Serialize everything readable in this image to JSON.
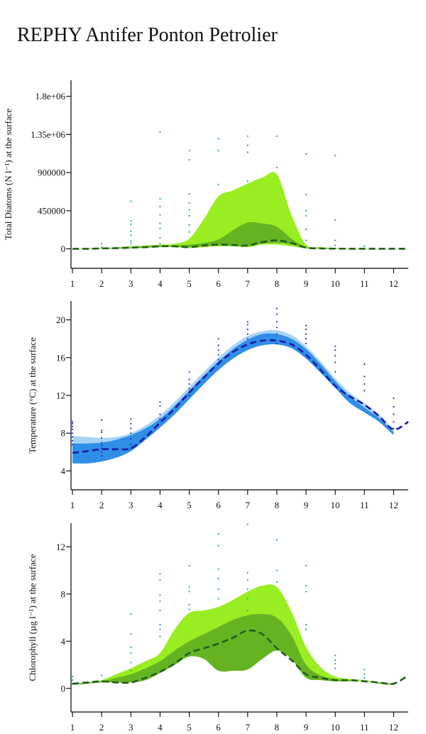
{
  "title": "REPHY Antifer Ponton Petrolier",
  "colors": {
    "diatoms_band_outer": "#99ee22",
    "diatoms_band_inner": "#66b322",
    "diatoms_median": "#1e5c1e",
    "diatoms_points": "#2a9d9d",
    "temp_band_outer": "#a8d4f2",
    "temp_band_inner": "#2f8ee6",
    "temp_median": "#1a1aa8",
    "temp_points": "#2233cc",
    "chl_band_outer": "#99ee22",
    "chl_band_inner": "#66b322",
    "chl_median": "#1e5c1e",
    "chl_points": "#2a9d9d"
  },
  "chart_data": [
    {
      "type": "area",
      "ylabel": "Total Diatoms (N l⁻¹) at the surface",
      "xlabel": "",
      "x_ticks": [
        "1",
        "2",
        "3",
        "4",
        "5",
        "6",
        "7",
        "8",
        "9",
        "10",
        "11",
        "12"
      ],
      "y_ticks": [
        "0",
        "450000",
        "900000",
        "1.35e+06",
        "1.8e+06"
      ],
      "y_tick_values": [
        0,
        450000,
        900000,
        1350000,
        1800000
      ],
      "xlim": [
        0.95,
        12.5
      ],
      "ylim": [
        -230000,
        1990000
      ],
      "outer_band": {
        "x": [
          1,
          1.5,
          2,
          2.5,
          3,
          3.5,
          4,
          4.5,
          5,
          5.5,
          6,
          6.5,
          7,
          7.5,
          8,
          8.5,
          9,
          9.5,
          10,
          10.5,
          11,
          11.5,
          12
        ],
        "upper": [
          5000,
          8000,
          10000,
          20000,
          30000,
          40000,
          50000,
          60000,
          120000,
          350000,
          620000,
          690000,
          770000,
          840000,
          880000,
          400000,
          50000,
          20000,
          10000,
          8000,
          5000,
          4000,
          3000
        ],
        "lower": [
          0,
          0,
          0,
          2000,
          5000,
          10000,
          20000,
          20000,
          10000,
          20000,
          30000,
          30000,
          20000,
          50000,
          50000,
          30000,
          5000,
          2000,
          0,
          0,
          0,
          0,
          0
        ]
      },
      "inner_band": {
        "x": [
          1,
          1.5,
          2,
          2.5,
          3,
          3.5,
          4,
          4.5,
          5,
          5.5,
          6,
          6.5,
          7,
          7.5,
          8,
          8.5,
          9,
          9.5,
          10,
          10.5,
          11,
          11.5,
          12
        ],
        "upper": [
          3000,
          5000,
          8000,
          12000,
          20000,
          30000,
          40000,
          40000,
          50000,
          70000,
          110000,
          220000,
          310000,
          300000,
          260000,
          120000,
          20000,
          10000,
          5000,
          4000,
          3000,
          2000,
          2000
        ],
        "lower": [
          0,
          0,
          0,
          3000,
          8000,
          15000,
          25000,
          25000,
          20000,
          30000,
          40000,
          35000,
          30000,
          60000,
          70000,
          50000,
          8000,
          3000,
          0,
          0,
          0,
          0,
          0
        ]
      },
      "median": {
        "x": [
          1,
          1.5,
          2,
          2.5,
          3,
          3.5,
          4,
          4.5,
          5,
          5.5,
          6,
          6.5,
          7,
          7.5,
          8,
          8.5,
          9,
          9.5,
          10,
          10.5,
          11,
          11.5,
          12,
          12.5
        ],
        "y": [
          0,
          0,
          5000,
          8000,
          15000,
          20000,
          30000,
          30000,
          20000,
          40000,
          50000,
          45000,
          40000,
          80000,
          100000,
          70000,
          15000,
          5000,
          2000,
          1000,
          1000,
          1000,
          1000,
          0
        ]
      },
      "points": [
        [
          2,
          20000
        ],
        [
          2,
          60000
        ],
        [
          3,
          60000
        ],
        [
          3,
          90000
        ],
        [
          3,
          160000
        ],
        [
          3,
          210000
        ],
        [
          3,
          290000
        ],
        [
          3,
          330000
        ],
        [
          3,
          560000
        ],
        [
          4,
          60000
        ],
        [
          4,
          130000
        ],
        [
          4,
          240000
        ],
        [
          4,
          300000
        ],
        [
          4,
          400000
        ],
        [
          4,
          500000
        ],
        [
          4,
          590000
        ],
        [
          4,
          1380000
        ],
        [
          5,
          200000
        ],
        [
          5,
          280000
        ],
        [
          5,
          390000
        ],
        [
          5,
          460000
        ],
        [
          5,
          540000
        ],
        [
          5,
          650000
        ],
        [
          5,
          1050000
        ],
        [
          5,
          1160000
        ],
        [
          6,
          760000
        ],
        [
          6,
          1160000
        ],
        [
          6,
          1300000
        ],
        [
          7,
          800000
        ],
        [
          7,
          1140000
        ],
        [
          7,
          1220000
        ],
        [
          7,
          1330000
        ],
        [
          8,
          960000
        ],
        [
          8,
          1330000
        ],
        [
          9,
          100000
        ],
        [
          9,
          230000
        ],
        [
          9,
          390000
        ],
        [
          9,
          450000
        ],
        [
          9,
          640000
        ],
        [
          9,
          1120000
        ],
        [
          10,
          40000
        ],
        [
          10,
          100000
        ],
        [
          10,
          340000
        ],
        [
          10,
          1100000
        ],
        [
          11,
          30000
        ]
      ]
    },
    {
      "type": "area",
      "ylabel": "Temperature (°C) at the surface",
      "xlabel": "",
      "x_ticks": [
        "1",
        "2",
        "3",
        "4",
        "5",
        "6",
        "7",
        "8",
        "9",
        "10",
        "11",
        "12"
      ],
      "y_ticks": [
        "4",
        "8",
        "12",
        "16",
        "20"
      ],
      "y_tick_values": [
        4,
        8,
        12,
        16,
        20
      ],
      "xlim": [
        0.95,
        12.5
      ],
      "ylim": [
        2,
        22
      ],
      "outer_band": {
        "x": [
          1,
          1.5,
          2,
          2.5,
          3,
          3.5,
          4,
          4.5,
          5,
          5.5,
          6,
          6.5,
          7,
          7.5,
          8,
          8.5,
          9,
          9.5,
          10,
          10.5,
          11,
          11.5,
          12
        ],
        "upper": [
          7.7,
          7.6,
          7.5,
          7.6,
          8.0,
          8.8,
          9.9,
          11.3,
          12.9,
          14.5,
          16.0,
          17.3,
          18.3,
          18.8,
          18.9,
          18.4,
          17.2,
          15.6,
          13.8,
          12.3,
          11.2,
          10.0,
          8.3
        ],
        "lower": [
          4.8,
          4.8,
          5.0,
          5.4,
          6.1,
          7.3,
          8.6,
          10.0,
          11.6,
          13.2,
          14.7,
          15.9,
          16.8,
          17.3,
          17.4,
          17.0,
          15.9,
          14.4,
          12.8,
          11.2,
          10.2,
          9.2,
          7.8
        ]
      },
      "inner_band": {
        "x": [
          1,
          1.5,
          2,
          2.5,
          3,
          3.5,
          4,
          4.5,
          5,
          5.5,
          6,
          6.5,
          7,
          7.5,
          8,
          8.5,
          9,
          9.5,
          10,
          10.5,
          11,
          11.5,
          12
        ],
        "upper": [
          6.9,
          6.9,
          7.0,
          7.3,
          7.8,
          8.5,
          9.5,
          10.9,
          12.5,
          14.1,
          15.6,
          16.9,
          17.9,
          18.5,
          18.5,
          18.0,
          16.9,
          15.3,
          13.5,
          11.9,
          10.7,
          9.6,
          8.1
        ],
        "lower": [
          4.8,
          4.8,
          5.0,
          5.4,
          6.1,
          7.3,
          8.6,
          10.0,
          11.6,
          13.2,
          14.7,
          15.9,
          16.8,
          17.3,
          17.4,
          17.0,
          15.9,
          14.4,
          12.8,
          11.2,
          10.2,
          9.2,
          7.8
        ]
      },
      "median": {
        "x": [
          1,
          1.5,
          2,
          2.5,
          3,
          3.5,
          4,
          4.5,
          5,
          5.5,
          6,
          6.5,
          7,
          7.5,
          8,
          8.5,
          9,
          9.5,
          10,
          10.5,
          11,
          11.5,
          12,
          12.5
        ],
        "y": [
          5.9,
          6.1,
          6.3,
          6.3,
          6.4,
          7.6,
          9.1,
          10.6,
          12.3,
          13.9,
          15.4,
          16.6,
          17.4,
          17.8,
          17.8,
          17.4,
          16.3,
          14.7,
          13.0,
          11.9,
          11.0,
          9.8,
          8.4,
          9.2
        ]
      },
      "points": [
        [
          1,
          6.8
        ],
        [
          1,
          7.2
        ],
        [
          1,
          7.6
        ],
        [
          1,
          8.0
        ],
        [
          1,
          8.4
        ],
        [
          1,
          8.7
        ],
        [
          1,
          9.0
        ],
        [
          1,
          9.2
        ],
        [
          2,
          5.6
        ],
        [
          2,
          6.0
        ],
        [
          2,
          6.4
        ],
        [
          2,
          6.7
        ],
        [
          2,
          7.0
        ],
        [
          2,
          7.5
        ],
        [
          2,
          8.1
        ],
        [
          2,
          8.3
        ],
        [
          2,
          9.4
        ],
        [
          3,
          6.4
        ],
        [
          3,
          6.8
        ],
        [
          3,
          7.4
        ],
        [
          3,
          8.0
        ],
        [
          3,
          8.5
        ],
        [
          3,
          9.0
        ],
        [
          3,
          9.5
        ],
        [
          4,
          9.5
        ],
        [
          4,
          10.0
        ],
        [
          4,
          10.9
        ],
        [
          4,
          11.3
        ],
        [
          5,
          12.0
        ],
        [
          5,
          12.7
        ],
        [
          5,
          13.2
        ],
        [
          5,
          13.7
        ],
        [
          5,
          14.5
        ],
        [
          6,
          15.3
        ],
        [
          6,
          15.8
        ],
        [
          6,
          16.3
        ],
        [
          6,
          16.8
        ],
        [
          6,
          17.3
        ],
        [
          6,
          18.0
        ],
        [
          7,
          18.0
        ],
        [
          7,
          18.5
        ],
        [
          7,
          19.0
        ],
        [
          7,
          19.5
        ],
        [
          7,
          19.8
        ],
        [
          8,
          17.5
        ],
        [
          8,
          18.5
        ],
        [
          8,
          19.2
        ],
        [
          8,
          19.8
        ],
        [
          8,
          20.6
        ],
        [
          8,
          21.2
        ],
        [
          9,
          17.5
        ],
        [
          9,
          18.0
        ],
        [
          9,
          18.5
        ],
        [
          9,
          19.0
        ],
        [
          9,
          19.4
        ],
        [
          10,
          14.5
        ],
        [
          10,
          15.5
        ],
        [
          10,
          16.2
        ],
        [
          10,
          16.8
        ],
        [
          10,
          17.2
        ],
        [
          11,
          12.5
        ],
        [
          11,
          13.2
        ],
        [
          11,
          14.0
        ],
        [
          11,
          15.3
        ],
        [
          12,
          8.5
        ],
        [
          12,
          9.2
        ],
        [
          12,
          10.0
        ],
        [
          12,
          10.8
        ],
        [
          12,
          11.7
        ]
      ]
    },
    {
      "type": "area",
      "ylabel": "Chlorophyll (µg l⁻¹) at the surface",
      "xlabel": "",
      "x_ticks": [
        "1",
        "2",
        "3",
        "4",
        "5",
        "6",
        "7",
        "8",
        "9",
        "10",
        "11",
        "12"
      ],
      "y_ticks": [
        "0",
        "4",
        "8",
        "12"
      ],
      "y_tick_values": [
        0,
        4,
        8,
        12
      ],
      "xlim": [
        0.95,
        12.5
      ],
      "ylim": [
        -2,
        14
      ],
      "outer_band": {
        "x": [
          1,
          1.5,
          2,
          2.5,
          3,
          3.5,
          4,
          4.5,
          5,
          5.5,
          6,
          6.5,
          7,
          7.5,
          8,
          8.5,
          9,
          9.5,
          10,
          10.5,
          11,
          11.5,
          12
        ],
        "upper": [
          0.3,
          0.5,
          0.7,
          1.2,
          1.7,
          2.3,
          3.0,
          5.0,
          6.4,
          6.6,
          6.9,
          7.5,
          8.2,
          8.7,
          8.6,
          6.5,
          3.5,
          1.8,
          1.0,
          0.8,
          0.7,
          0.5,
          0.3
        ],
        "lower": [
          0.3,
          0.4,
          0.5,
          0.5,
          0.5,
          0.7,
          1.3,
          2.0,
          2.7,
          2.5,
          1.5,
          1.5,
          1.6,
          2.5,
          3.2,
          2.5,
          0.9,
          0.7,
          0.6,
          0.6,
          0.6,
          0.4,
          0.3
        ]
      },
      "inner_band": {
        "x": [
          1,
          1.5,
          2,
          2.5,
          3,
          3.5,
          4,
          4.5,
          5,
          5.5,
          6,
          6.5,
          7,
          7.5,
          8,
          8.5,
          9,
          9.5,
          10,
          10.5,
          11,
          11.5,
          12
        ],
        "upper": [
          0.4,
          0.5,
          0.6,
          0.9,
          1.2,
          1.7,
          2.3,
          3.2,
          4.0,
          4.6,
          5.2,
          5.8,
          6.2,
          6.3,
          6.0,
          4.5,
          2.0,
          1.1,
          0.8,
          0.7,
          0.6,
          0.5,
          0.4
        ],
        "lower": [
          0.3,
          0.4,
          0.5,
          0.5,
          0.5,
          0.7,
          1.3,
          2.0,
          2.7,
          2.5,
          1.5,
          1.5,
          1.6,
          2.5,
          3.2,
          2.5,
          0.9,
          0.7,
          0.6,
          0.6,
          0.6,
          0.4,
          0.3
        ]
      },
      "median": {
        "x": [
          1,
          1.5,
          2,
          2.5,
          3,
          3.5,
          4,
          4.5,
          5,
          5.5,
          6,
          6.5,
          7,
          7.5,
          8,
          8.5,
          9,
          9.5,
          10,
          10.5,
          11,
          11.5,
          12,
          12.5
        ],
        "y": [
          0.4,
          0.5,
          0.6,
          0.5,
          0.5,
          0.9,
          1.4,
          2.1,
          3.0,
          3.4,
          3.8,
          4.3,
          4.9,
          4.6,
          3.4,
          2.4,
          1.2,
          0.9,
          0.7,
          0.7,
          0.6,
          0.5,
          0.4,
          1.1
        ]
      },
      "points": [
        [
          1,
          0.4
        ],
        [
          1,
          0.7
        ],
        [
          1,
          1.0
        ],
        [
          2,
          0.6
        ],
        [
          2,
          1.1
        ],
        [
          3,
          1.5
        ],
        [
          3,
          2.2
        ],
        [
          3,
          3.0
        ],
        [
          3,
          3.5
        ],
        [
          3,
          4.6
        ],
        [
          3,
          6.3
        ],
        [
          4,
          4.4
        ],
        [
          4,
          5.0
        ],
        [
          4,
          5.4
        ],
        [
          4,
          6.6
        ],
        [
          4,
          7.4
        ],
        [
          4,
          7.9
        ],
        [
          4,
          9.2
        ],
        [
          4,
          9.7
        ],
        [
          5,
          6.7
        ],
        [
          5,
          7.1
        ],
        [
          5,
          8.2
        ],
        [
          5,
          8.6
        ],
        [
          5,
          10.4
        ],
        [
          6,
          7.6
        ],
        [
          6,
          8.4
        ],
        [
          6,
          9.3
        ],
        [
          6,
          10.1
        ],
        [
          6,
          12.1
        ],
        [
          6,
          13.1
        ],
        [
          7,
          6.6
        ],
        [
          7,
          7.6
        ],
        [
          7,
          8.4
        ],
        [
          7,
          9.2
        ],
        [
          7,
          9.8
        ],
        [
          7,
          13.9
        ],
        [
          8,
          9.0
        ],
        [
          8,
          10.0
        ],
        [
          8,
          12.6
        ],
        [
          9,
          5.0
        ],
        [
          9,
          5.4
        ],
        [
          9,
          8.2
        ],
        [
          9,
          8.7
        ],
        [
          9,
          10.4
        ],
        [
          10,
          1.7
        ],
        [
          10,
          2.1
        ],
        [
          10,
          2.4
        ],
        [
          10,
          2.8
        ],
        [
          11,
          0.9
        ],
        [
          11,
          1.2
        ],
        [
          11,
          1.6
        ]
      ]
    }
  ]
}
